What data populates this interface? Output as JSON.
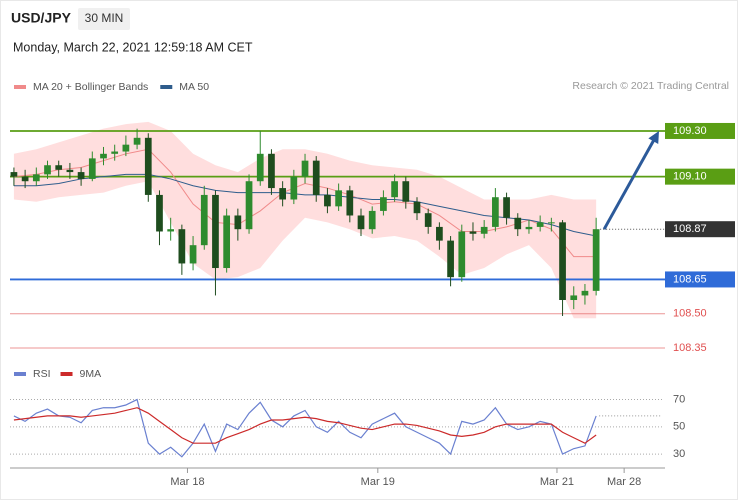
{
  "header": {
    "symbol": "USD/JPY",
    "interval": "30 MIN",
    "timestamp": "Monday, March 22, 2021 12:59:18 AM CET"
  },
  "credit": "Research © 2021 Trading Central",
  "chart_data": [
    {
      "type": "candlestick",
      "xlim": [
        -0.7,
        116.3
      ],
      "ylim": [
        108.3,
        109.45
      ],
      "up_color": "#2e8b2e",
      "down_color": "#1e4d1e",
      "band_color": "#ffdede",
      "x": [
        0,
        2,
        4,
        6,
        8,
        10,
        12,
        14,
        16,
        18,
        20,
        22,
        24,
        26,
        28,
        30,
        32,
        34,
        36,
        38,
        40,
        42,
        44,
        46,
        48,
        50,
        52,
        54,
        56,
        58,
        60,
        62,
        64,
        66,
        68,
        70,
        72,
        74,
        76,
        78,
        80,
        82,
        84,
        86,
        88,
        90,
        92,
        94,
        96,
        98,
        100,
        102,
        104
      ],
      "open": [
        109.12,
        109.1,
        109.08,
        109.11,
        109.15,
        109.13,
        109.12,
        109.09,
        109.18,
        109.2,
        109.21,
        109.24,
        109.27,
        109.02,
        108.86,
        108.87,
        108.72,
        108.8,
        109.02,
        108.7,
        108.93,
        108.87,
        109.08,
        109.2,
        109.05,
        109.0,
        109.1,
        109.17,
        109.02,
        108.97,
        109.04,
        108.93,
        108.87,
        108.95,
        109.01,
        109.08,
        108.99,
        108.94,
        108.88,
        108.82,
        108.66,
        108.86,
        108.85,
        108.88,
        109.01,
        108.92,
        108.87,
        108.88,
        108.9,
        108.9,
        108.56,
        108.58,
        108.6
      ],
      "high": [
        109.14,
        109.13,
        109.14,
        109.17,
        109.17,
        109.16,
        109.14,
        109.21,
        109.23,
        109.24,
        109.28,
        109.31,
        109.29,
        109.04,
        108.92,
        108.89,
        108.84,
        109.06,
        109.04,
        108.96,
        108.96,
        109.11,
        109.3,
        109.22,
        109.08,
        109.13,
        109.2,
        109.19,
        109.05,
        109.07,
        109.06,
        108.96,
        108.97,
        109.04,
        109.11,
        109.1,
        109.01,
        108.96,
        108.9,
        108.84,
        108.89,
        108.9,
        108.91,
        109.05,
        109.03,
        108.94,
        108.91,
        108.93,
        108.92,
        108.91,
        108.62,
        108.63,
        108.92
      ],
      "low": [
        109.06,
        109.05,
        109.06,
        109.09,
        109.1,
        109.09,
        109.06,
        109.08,
        109.15,
        109.17,
        109.19,
        109.22,
        108.99,
        108.8,
        108.82,
        108.67,
        108.69,
        108.78,
        108.58,
        108.68,
        108.82,
        108.85,
        109.06,
        109.02,
        108.97,
        108.98,
        109.07,
        108.99,
        108.94,
        108.95,
        108.9,
        108.84,
        108.85,
        108.93,
        108.99,
        108.96,
        108.91,
        108.85,
        108.78,
        108.62,
        108.64,
        108.82,
        108.83,
        108.86,
        108.89,
        108.84,
        108.85,
        108.86,
        108.86,
        108.49,
        108.52,
        108.54,
        108.58
      ],
      "close": [
        109.1,
        109.08,
        109.11,
        109.15,
        109.13,
        109.12,
        109.09,
        109.18,
        109.2,
        109.21,
        109.24,
        109.27,
        109.02,
        108.86,
        108.87,
        108.72,
        108.8,
        109.02,
        108.7,
        108.93,
        108.87,
        109.08,
        109.2,
        109.05,
        109.0,
        109.1,
        109.17,
        109.02,
        108.97,
        109.04,
        108.93,
        108.87,
        108.95,
        109.01,
        109.08,
        108.99,
        108.94,
        108.88,
        108.82,
        108.66,
        108.86,
        108.85,
        108.88,
        109.01,
        108.92,
        108.87,
        108.88,
        108.9,
        108.9,
        108.56,
        108.58,
        108.6,
        108.87
      ],
      "series": [
        {
          "name": "MA 20 + Bollinger Bands",
          "color": "#f08a8a",
          "x": [
            0,
            4,
            8,
            12,
            16,
            20,
            24,
            28,
            32,
            36,
            40,
            44,
            48,
            52,
            56,
            60,
            64,
            68,
            72,
            76,
            80,
            84,
            88,
            92,
            96,
            100,
            104
          ],
          "values": [
            109.1,
            109.11,
            109.13,
            109.14,
            109.17,
            109.2,
            109.22,
            109.12,
            108.98,
            108.9,
            108.89,
            108.95,
            109.03,
            109.07,
            109.05,
            109.02,
            108.98,
            108.99,
            108.98,
            108.93,
            108.86,
            108.86,
            108.88,
            108.91,
            108.87,
            108.75,
            108.75
          ],
          "upper": [
            109.2,
            109.22,
            109.25,
            109.28,
            109.31,
            109.33,
            109.34,
            109.3,
            109.2,
            109.15,
            109.12,
            109.18,
            109.22,
            109.22,
            109.2,
            109.17,
            109.15,
            109.14,
            109.13,
            109.1,
            109.05,
            109.0,
            109.0,
            109.0,
            109.02,
            109.0,
            109.0
          ],
          "lower": [
            109.0,
            108.99,
            109.01,
            109.02,
            109.03,
            109.06,
            109.08,
            108.9,
            108.72,
            108.65,
            108.66,
            108.7,
            108.82,
            108.92,
            108.9,
            108.87,
            108.83,
            108.84,
            108.82,
            108.75,
            108.67,
            108.7,
            108.76,
            108.8,
            108.7,
            108.48,
            108.48
          ]
        },
        {
          "name": "MA 50",
          "color": "#2f5d8c",
          "x": [
            0,
            4,
            8,
            12,
            16,
            20,
            24,
            28,
            32,
            36,
            40,
            44,
            48,
            52,
            56,
            60,
            64,
            68,
            72,
            76,
            80,
            84,
            88,
            92,
            96,
            100,
            104
          ],
          "values": [
            109.06,
            109.06,
            109.07,
            109.09,
            109.1,
            109.11,
            109.11,
            109.09,
            109.06,
            109.04,
            109.03,
            109.03,
            109.03,
            109.02,
            109.02,
            109.01,
            109.0,
            109.0,
            108.99,
            108.97,
            108.95,
            108.93,
            108.92,
            108.91,
            108.89,
            108.86,
            108.84
          ]
        }
      ],
      "levels": [
        {
          "value": 109.3,
          "label": "109.30",
          "color": "#5a9e14",
          "style": "box"
        },
        {
          "value": 109.1,
          "label": "109.10",
          "color": "#5a9e14",
          "style": "box"
        },
        {
          "value": 108.65,
          "label": "108.65",
          "color": "#2f6bd8",
          "style": "box"
        },
        {
          "value": 108.5,
          "label": "108.50",
          "color": "#e05050",
          "style": "text"
        },
        {
          "value": 108.35,
          "label": "108.35",
          "color": "#e05050",
          "style": "text"
        }
      ],
      "current_price": {
        "value": 108.87,
        "label": "108.87",
        "color": "#333333"
      },
      "arrow_color": "#2c5a9a"
    },
    {
      "type": "line",
      "xlim": [
        -0.7,
        116.3
      ],
      "ylim": [
        22,
        77
      ],
      "yticks": [
        30,
        50,
        70
      ],
      "xticks": [
        {
          "value": 31,
          "label": "Mar 18"
        },
        {
          "value": 65,
          "label": "Mar 19"
        },
        {
          "value": 97,
          "label": "Mar 21"
        },
        {
          "value": 109,
          "label": "Mar 28"
        }
      ],
      "x": [
        0,
        2,
        4,
        6,
        8,
        10,
        12,
        14,
        16,
        18,
        20,
        22,
        24,
        26,
        28,
        30,
        32,
        34,
        36,
        38,
        40,
        42,
        44,
        46,
        48,
        50,
        52,
        54,
        56,
        58,
        60,
        62,
        64,
        66,
        68,
        70,
        72,
        74,
        76,
        78,
        80,
        82,
        84,
        86,
        88,
        90,
        92,
        94,
        96,
        98,
        100,
        102,
        104
      ],
      "series": [
        {
          "name": "RSI",
          "color": "#6a80d0",
          "values": [
            58,
            54,
            60,
            63,
            58,
            57,
            53,
            62,
            64,
            64,
            66,
            70,
            38,
            30,
            35,
            28,
            38,
            52,
            32,
            52,
            48,
            60,
            68,
            55,
            50,
            58,
            62,
            50,
            46,
            54,
            46,
            42,
            52,
            56,
            60,
            50,
            46,
            42,
            38,
            30,
            54,
            52,
            55,
            64,
            52,
            48,
            50,
            54,
            52,
            30,
            34,
            36,
            58
          ]
        },
        {
          "name": "9MA",
          "color": "#cc2a2a",
          "values": [
            55,
            56,
            57,
            58,
            58,
            58,
            57,
            58,
            59,
            60,
            62,
            64,
            60,
            54,
            48,
            42,
            38,
            38,
            38,
            42,
            45,
            48,
            52,
            55,
            55,
            56,
            57,
            56,
            54,
            53,
            51,
            49,
            48,
            50,
            52,
            52,
            51,
            49,
            47,
            44,
            43,
            44,
            46,
            50,
            52,
            52,
            52,
            52,
            52,
            46,
            42,
            38,
            44
          ]
        }
      ]
    }
  ]
}
